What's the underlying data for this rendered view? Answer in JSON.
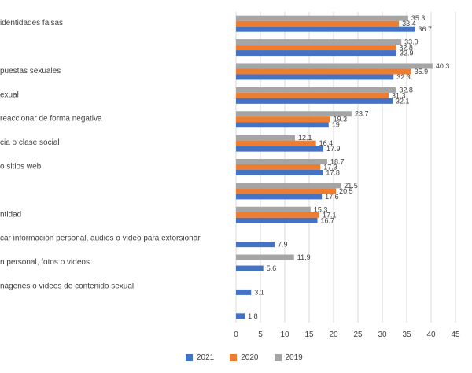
{
  "chart_data": {
    "type": "bar",
    "orientation": "horizontal",
    "categories": [
      "identidades falsas",
      "",
      "puestas sexuales",
      "exual",
      "reaccionar de forma negativa",
      "cia o clase social",
      "o sitios web",
      "",
      "ntidad",
      "car información personal, audios o video para extorsionar",
      "n personal, fotos o videos",
      "nágenes o videos de contenido sexual",
      ""
    ],
    "series": [
      {
        "name": "2021",
        "color": "#4472c4",
        "values": [
          36.7,
          32.9,
          32.3,
          32.1,
          19,
          17.9,
          17.8,
          17.6,
          16.7,
          7.9,
          5.6,
          3.1,
          1.8
        ],
        "labels": [
          "36.7",
          "32.9",
          "32.3",
          "32.1",
          "19",
          "17.9",
          "17.8",
          "17.6",
          "16.7",
          "7.9",
          "5.6",
          "3.1",
          "1.8"
        ]
      },
      {
        "name": "2020",
        "color": "#ed7d31",
        "values": [
          33.4,
          32.8,
          35.9,
          31.3,
          19.3,
          16.4,
          17.3,
          20.5,
          17.1,
          null,
          null,
          null,
          null
        ],
        "labels": [
          "33.4",
          "32.8",
          "35.9",
          "31.3",
          "19.3",
          "16.4",
          "17.3",
          "20.5",
          "17.1",
          "",
          "",
          "",
          ""
        ]
      },
      {
        "name": "2019",
        "color": "#a5a5a5",
        "values": [
          35.3,
          33.9,
          40.3,
          32.8,
          23.7,
          12.1,
          18.7,
          21.5,
          15.3,
          null,
          11.9,
          null,
          null
        ],
        "labels": [
          "35.3",
          "33.9",
          "40.3",
          "32.8",
          "23.7",
          "12.1",
          "18.7",
          "21.5",
          "15.3",
          "",
          "11.9",
          "",
          ""
        ]
      }
    ],
    "xlim": [
      0,
      45
    ],
    "xticks": [
      "0",
      "5",
      "10",
      "15",
      "20",
      "25",
      "30",
      "35",
      "40",
      "45"
    ],
    "grid": true,
    "legend_position": "bottom",
    "title": "",
    "xlabel": "",
    "ylabel": ""
  }
}
